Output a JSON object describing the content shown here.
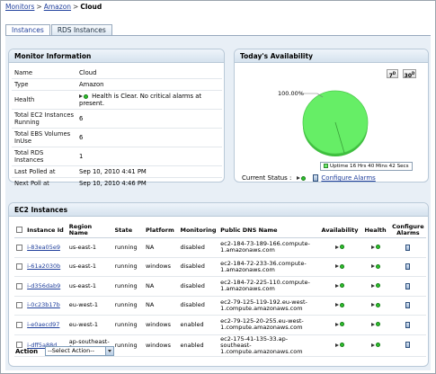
{
  "breadcrumb": {
    "monitors": "Monitors",
    "amazon": "Amazon",
    "current": "Cloud",
    "sep": ">"
  },
  "tabs": [
    {
      "label": "Instances",
      "active": true
    },
    {
      "label": "RDS Instances",
      "active": false
    }
  ],
  "monitor_info": {
    "title": "Monitor Information",
    "rows": [
      {
        "key": "Name",
        "value": "Cloud"
      },
      {
        "key": "Type",
        "value": "Amazon"
      },
      {
        "key": "Health",
        "value": "Health is Clear. No critical alarms at present."
      },
      {
        "key": "Total EC2 Instances Running",
        "value": "6"
      },
      {
        "key": "Total EBS Volumes InUse",
        "value": "6"
      },
      {
        "key": "Total RDS Instances",
        "value": "1"
      },
      {
        "key": "Last Polled at",
        "value": "Sep 10, 2010 4:41 PM"
      },
      {
        "key": "Next Poll at",
        "value": "Sep 10, 2010 4:46 PM"
      }
    ]
  },
  "availability": {
    "title": "Today's Availability",
    "btn_7": "7",
    "btn_30": "30",
    "pie_label": "100.00%",
    "uptime_fraction": 1.0,
    "legend": "Uptime 16 Hrs 40 Mins 42 Secs",
    "current_status_label": "Current Status :",
    "configure_alarms": "Configure Alarms"
  },
  "colors": {
    "up": "#66ee66",
    "accent": "#1f3f9c"
  },
  "ec2": {
    "title": "EC2 Instances",
    "headers": [
      "Instance Id",
      "Region Name",
      "State",
      "Platform",
      "Monitoring",
      "Public DNS Name",
      "Availability",
      "Health",
      "Configure Alarms"
    ],
    "rows": [
      {
        "id": "i-83ea05e9",
        "region": "us-east-1",
        "state": "running",
        "platform": "NA",
        "monitoring": "disabled",
        "dns": "ec2-184-73-189-166.compute-1.amazonaws.com"
      },
      {
        "id": "i-61a2030b",
        "region": "us-east-1",
        "state": "running",
        "platform": "windows",
        "monitoring": "disabled",
        "dns": "ec2-184-72-233-36.compute-1.amazonaws.com"
      },
      {
        "id": "i-d356dab9",
        "region": "us-east-1",
        "state": "running",
        "platform": "NA",
        "monitoring": "disabled",
        "dns": "ec2-184-72-225-110.compute-1.amazonaws.com"
      },
      {
        "id": "i-0c23b17b",
        "region": "eu-west-1",
        "state": "running",
        "platform": "NA",
        "monitoring": "disabled",
        "dns": "ec2-79-125-119-192.eu-west-1.compute.amazonaws.com"
      },
      {
        "id": "i-e0aecd97",
        "region": "eu-west-1",
        "state": "running",
        "platform": "windows",
        "monitoring": "enabled",
        "dns": "ec2-79-125-20-255.eu-west-1.compute.amazonaws.com"
      },
      {
        "id": "i-dff5a88d",
        "region": "ap-southeast-1",
        "state": "running",
        "platform": "windows",
        "monitoring": "enabled",
        "dns": "ec2-175-41-135-33.ap-southeast-1.compute.amazonaws.com"
      }
    ],
    "action_label": "Action",
    "select_placeholder": "--Select Action--"
  }
}
